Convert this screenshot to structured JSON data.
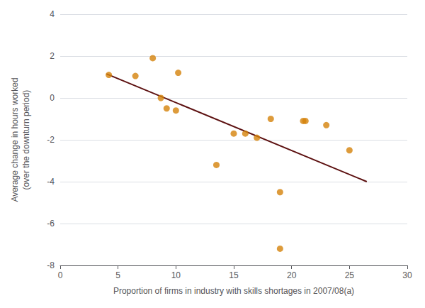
{
  "chart_data": {
    "type": "scatter",
    "xlabel": "Proportion of firms in industry with skills shortages in 2007/08(a)",
    "ylabel": "Average change in hours worked\n(over the downturn period)",
    "series": [
      {
        "type": "scatter",
        "color": "#d4820a",
        "x": [
          4.2,
          6.5,
          8.0,
          8.7,
          9.2,
          10.0,
          10.2,
          13.5,
          15.0,
          16.0,
          17.0,
          18.2,
          19.0,
          19.0,
          21.0,
          21.2,
          23.0,
          25.0
        ],
        "values": [
          1.1,
          1.05,
          1.9,
          0.0,
          -0.5,
          -0.6,
          1.2,
          -3.2,
          -1.7,
          -1.7,
          -1.9,
          -1.0,
          -4.5,
          -7.2,
          -1.1,
          -1.1,
          -1.3,
          -2.5
        ]
      },
      {
        "type": "line",
        "color": "#5c1010",
        "x": [
          4.0,
          26.5
        ],
        "values": [
          1.15,
          -4.0
        ]
      }
    ],
    "xlim": [
      0,
      30
    ],
    "ylim": [
      -8,
      4
    ],
    "xticks": [
      0,
      5,
      10,
      15,
      20,
      25,
      30
    ],
    "yticks": [
      -8,
      -6,
      -4,
      -2,
      0,
      2,
      4
    ],
    "grid": true
  }
}
